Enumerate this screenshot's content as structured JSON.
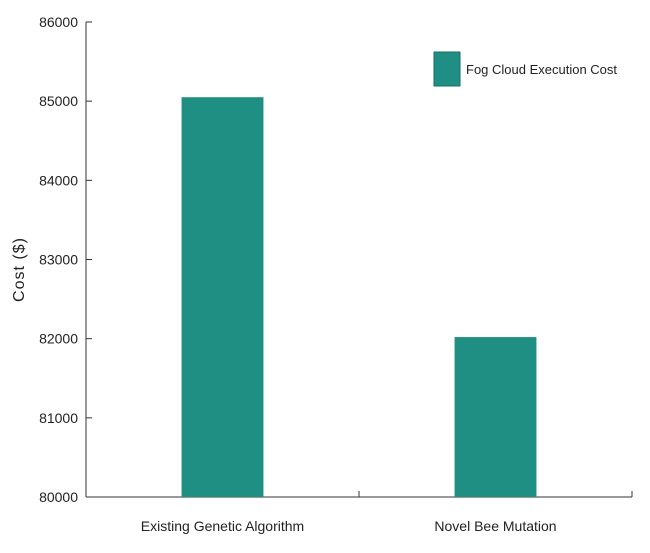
{
  "chart_data": {
    "type": "bar",
    "categories": [
      "Existing Genetic Algorithm",
      "Novel Bee Mutation"
    ],
    "series": [
      {
        "name": "Fog Cloud Execution Cost",
        "values": [
          85050,
          82020
        ],
        "color": "#1f8f84"
      }
    ],
    "ylabel": "Cost ($)",
    "ylim": [
      80000,
      86000
    ],
    "yticks": [
      80000,
      81000,
      82000,
      83000,
      84000,
      85000,
      86000
    ],
    "grid": false,
    "legend_position": "top-right"
  }
}
